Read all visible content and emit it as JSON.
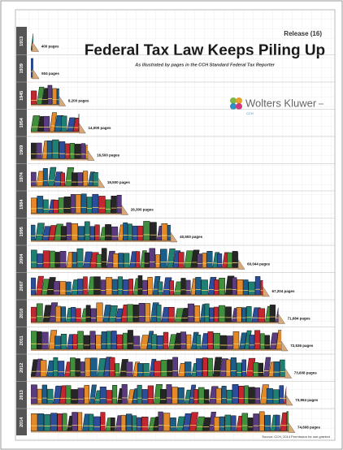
{
  "chart_data": {
    "type": "bar",
    "orientation": "horizontal",
    "title": "Federal Tax Law Keeps Piling Up",
    "subtitle": "As illustrated by pages in the CCH Standard Federal Tax Reporter",
    "release": "Release (16)",
    "brand": "Wolters Kluwer",
    "brand_sub": "CCH",
    "source": "Source: CCH, 2014 Permission for use granted",
    "categories": [
      "1913",
      "1939",
      "1945",
      "1954",
      "1969",
      "1974",
      "1984",
      "1995",
      "2004",
      "2007",
      "2010",
      "2011",
      "2012",
      "2013",
      "2014"
    ],
    "values": [
      400,
      504,
      8200,
      14000,
      16500,
      19500,
      26300,
      40500,
      60044,
      67204,
      71684,
      72536,
      73608,
      73954,
      74608
    ],
    "value_labels": [
      "400 pages",
      "504 pages",
      "8,200 pages",
      "14,000 pages",
      "16,500 pages",
      "19,500 pages",
      "26,300 pages",
      "40,500 pages",
      "60,044 pages",
      "67,204 pages",
      "71,684 pages",
      "72,536 pages",
      "73,608 pages",
      "73,954 pages",
      "74,608 pages"
    ],
    "colors": [
      "#1f7f72",
      "#2c4c9c",
      "#c3262e",
      "#3f8f3c",
      "#262626",
      "#5b3b80",
      "#e3892a",
      "#1b5e8a"
    ]
  }
}
